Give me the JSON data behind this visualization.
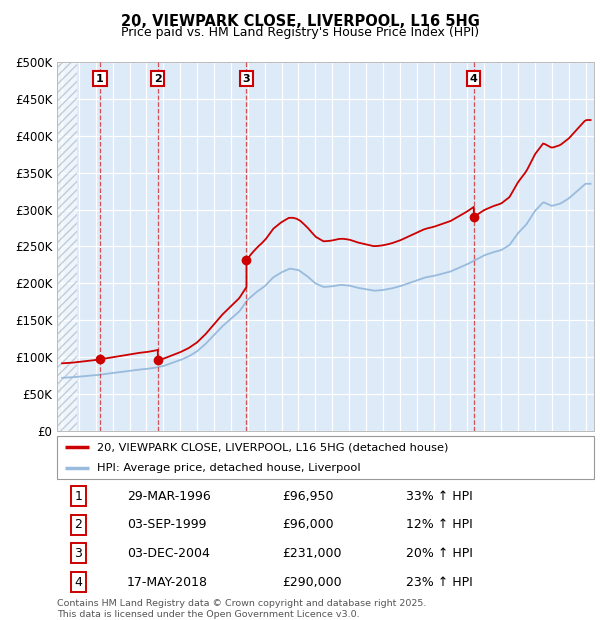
{
  "title1": "20, VIEWPARK CLOSE, LIVERPOOL, L16 5HG",
  "title2": "Price paid vs. HM Land Registry's House Price Index (HPI)",
  "ylabel_ticks": [
    "£0",
    "£50K",
    "£100K",
    "£150K",
    "£200K",
    "£250K",
    "£300K",
    "£350K",
    "£400K",
    "£450K",
    "£500K"
  ],
  "ytick_values": [
    0,
    50000,
    100000,
    150000,
    200000,
    250000,
    300000,
    350000,
    400000,
    450000,
    500000
  ],
  "xlim_start": 1993.7,
  "xlim_end": 2025.5,
  "ylim_min": 0,
  "ylim_max": 500000,
  "bg_color": "#ddeaf7",
  "grid_color": "#ffffff",
  "sale_line_color": "#cc0000",
  "hpi_line_color": "#99bbdd",
  "transactions": [
    {
      "num": 1,
      "date_dec": 1996.24,
      "price": 96950
    },
    {
      "num": 2,
      "date_dec": 1999.67,
      "price": 96000
    },
    {
      "num": 3,
      "date_dec": 2004.92,
      "price": 231000
    },
    {
      "num": 4,
      "date_dec": 2018.38,
      "price": 290000
    }
  ],
  "legend_sale": "20, VIEWPARK CLOSE, LIVERPOOL, L16 5HG (detached house)",
  "legend_hpi": "HPI: Average price, detached house, Liverpool",
  "table_rows": [
    [
      "1",
      "29-MAR-1996",
      "£96,950",
      "33% ↑ HPI"
    ],
    [
      "2",
      "03-SEP-1999",
      "£96,000",
      "12% ↑ HPI"
    ],
    [
      "3",
      "03-DEC-2004",
      "£231,000",
      "20% ↑ HPI"
    ],
    [
      "4",
      "17-MAY-2018",
      "£290,000",
      "23% ↑ HPI"
    ]
  ],
  "footnote": "Contains HM Land Registry data © Crown copyright and database right 2025.\nThis data is licensed under the Open Government Licence v3.0.",
  "years_hpi": [
    1994,
    1994.5,
    1995,
    1995.5,
    1996,
    1996.5,
    1997,
    1997.5,
    1998,
    1998.5,
    1999,
    1999.5,
    2000,
    2000.5,
    2001,
    2001.5,
    2002,
    2002.5,
    2003,
    2003.5,
    2004,
    2004.5,
    2005,
    2005.5,
    2006,
    2006.5,
    2007,
    2007.5,
    2008,
    2008.5,
    2009,
    2009.5,
    2010,
    2010.5,
    2011,
    2011.5,
    2012,
    2012.5,
    2013,
    2013.5,
    2014,
    2014.5,
    2015,
    2015.5,
    2016,
    2016.5,
    2017,
    2017.5,
    2018,
    2018.5,
    2019,
    2019.5,
    2020,
    2020.5,
    2021,
    2021.5,
    2022,
    2022.5,
    2023,
    2023.5,
    2024,
    2024.5,
    2025
  ],
  "hpi_values": [
    72000,
    72500,
    73500,
    74500,
    75500,
    77000,
    78500,
    80000,
    81500,
    83000,
    84000,
    85500,
    88000,
    92000,
    96000,
    101000,
    108000,
    118000,
    130000,
    142000,
    152000,
    162000,
    178000,
    188000,
    196000,
    208000,
    215000,
    220000,
    218000,
    210000,
    200000,
    195000,
    196000,
    198000,
    197000,
    194000,
    192000,
    190000,
    191000,
    193000,
    196000,
    200000,
    204000,
    208000,
    210000,
    213000,
    216000,
    221000,
    226000,
    232000,
    238000,
    242000,
    245000,
    252000,
    268000,
    280000,
    298000,
    310000,
    305000,
    308000,
    315000,
    325000,
    335000
  ]
}
